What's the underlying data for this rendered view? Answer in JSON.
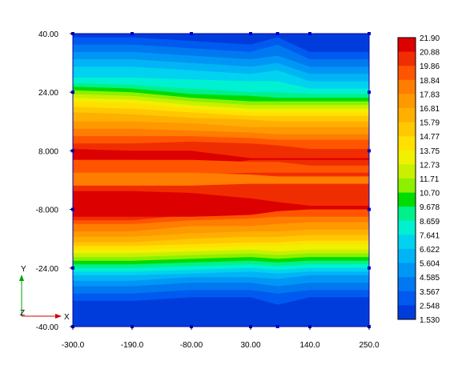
{
  "chart_data": {
    "type": "heatmap",
    "x": [
      -300,
      -190,
      -80,
      30,
      140,
      250
    ],
    "y": [
      -40,
      -24,
      -8,
      8,
      24,
      40
    ],
    "x_tick_labels": [
      "-300.0",
      "-190.0",
      "-80.00",
      "30.00",
      "140.0",
      "250.0"
    ],
    "y_tick_labels": [
      "-40.00",
      "-24.00",
      "-8.000",
      "8.000",
      "24.00",
      "40.00"
    ],
    "xlim": [
      -300,
      250
    ],
    "ylim": [
      -40,
      40
    ],
    "node_x": [
      -300,
      -190,
      -80,
      30,
      80,
      140,
      250
    ],
    "node_y": [
      40,
      24,
      8,
      -8,
      -24,
      -40
    ],
    "grid": false,
    "legend_position": "right",
    "colorbar_labels": [
      "21.90",
      "20.88",
      "19.86",
      "18.84",
      "17.83",
      "16.81",
      "15.79",
      "14.77",
      "13.75",
      "12.73",
      "11.71",
      "10.70",
      "9.678",
      "8.659",
      "7.641",
      "6.622",
      "5.604",
      "4.585",
      "3.567",
      "2.548",
      "1.530"
    ],
    "colorbar_colors": [
      "#dc0000",
      "#f02d00",
      "#ff5500",
      "#ff7d00",
      "#ff9900",
      "#ffaf00",
      "#ffc800",
      "#ffe000",
      "#f0f000",
      "#c8f000",
      "#8cf000",
      "#00dc00",
      "#00f08c",
      "#00f0d2",
      "#00d2f0",
      "#00b4f5",
      "#0096f5",
      "#0078f0",
      "#005af0",
      "#003cdc"
    ],
    "axis_labels": {
      "x": "X",
      "y": "Y",
      "z": "Z"
    }
  }
}
